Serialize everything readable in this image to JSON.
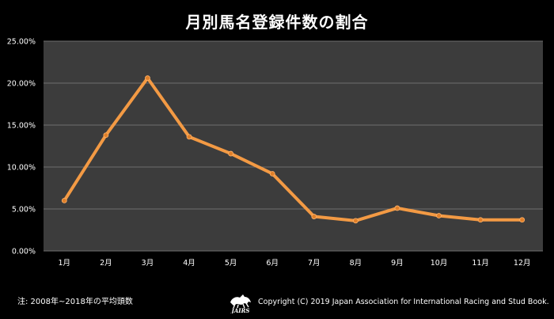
{
  "colors": {
    "background": "#000000",
    "plot_background": "#3c3c3c",
    "gridline": "#6e6e6e",
    "line": "#f39a44",
    "marker": "#e0802a",
    "text": "#ffffff"
  },
  "footer": {
    "note": "注: 2008年~2018年の平均頭数",
    "logo_text": "JAIRS",
    "copyright": "Copyright (C) 2019  Japan Association for International Racing and Stud Book."
  },
  "chart_data": {
    "type": "line",
    "title": "月別馬名登録件数の割合",
    "xlabel": "",
    "ylabel": "",
    "categories": [
      "1月",
      "2月",
      "3月",
      "4月",
      "5月",
      "6月",
      "7月",
      "8月",
      "9月",
      "10月",
      "11月",
      "12月"
    ],
    "series": [
      {
        "values": [
          6.0,
          13.8,
          20.6,
          13.6,
          11.6,
          9.2,
          4.1,
          3.6,
          5.1,
          4.2,
          3.7,
          3.7
        ]
      }
    ],
    "ylim": [
      0,
      25
    ],
    "yticks": [
      0,
      5,
      10,
      15,
      20,
      25
    ],
    "ytick_labels": [
      "0.00%",
      "5.00%",
      "10.00%",
      "15.00%",
      "20.00%",
      "25.00%"
    ],
    "grid": true,
    "legend": "none"
  }
}
